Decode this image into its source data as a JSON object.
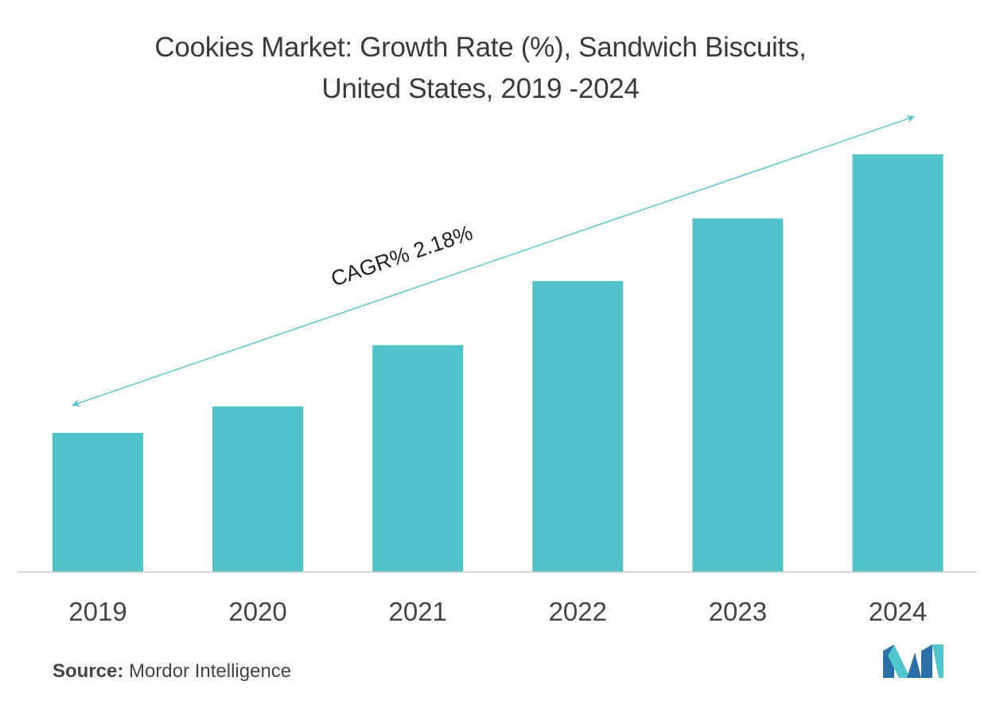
{
  "title_line1": "Cookies Market: Growth Rate (%), Sandwich Biscuits,",
  "title_line2": "United States, 2019 -2024",
  "source_label": "Source:",
  "source_value": "Mordor Intelligence",
  "annotation": "CAGR% 2.18%",
  "colors": {
    "bar": "#50c3c9",
    "arrow": "#5cc4ca",
    "axis": "#cccccc",
    "text": "#3a3a3a",
    "logo_dark": "#2b6fa8",
    "logo_light": "#4fc6cc"
  },
  "chart_data": {
    "type": "bar",
    "categories": [
      "2019",
      "2020",
      "2021",
      "2022",
      "2023",
      "2024"
    ],
    "values": [
      1.0,
      1.19,
      1.63,
      2.09,
      2.54,
      3.0
    ],
    "ylim": [
      0,
      3.0
    ]
  }
}
